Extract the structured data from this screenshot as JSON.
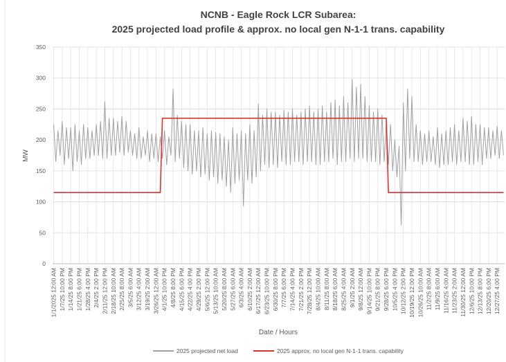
{
  "chart_data": {
    "type": "line",
    "title": [
      "NCNB - Eagle Rock LCR Subarea:",
      "2025 projected load profile & approx. no local gen N-1-1 trans. capability"
    ],
    "xlabel": "Date / Hours",
    "ylabel": "MW",
    "ylim": [
      0,
      350
    ],
    "yticks": [
      0,
      50,
      100,
      150,
      200,
      250,
      300,
      350
    ],
    "grid": true,
    "legend": "bottom",
    "categories": [
      "1/1/2025 12:00 AM",
      null,
      null,
      null,
      "1/7/25 10:00 PM",
      null,
      null,
      null,
      "1/14/25 8:00 PM",
      null,
      null,
      null,
      "1/21/25 6:00 PM",
      null,
      null,
      null,
      "1/28/25 4:00 PM",
      null,
      null,
      null,
      "2/4/25 2:00 PM",
      null,
      null,
      null,
      "2/11/25 12:00 PM",
      null,
      null,
      null,
      "2/18/25 10:00 AM",
      null,
      null,
      null,
      "2/25/25 8:00 AM",
      null,
      null,
      null,
      "3/5/25 6:00 AM",
      null,
      null,
      null,
      "3/12/25 4:00 AM",
      null,
      null,
      null,
      "3/19/25 2:00 AM",
      null,
      null,
      null,
      "3/26/25 12:00 AM",
      null,
      null,
      null,
      "4/1/25 10:00 PM",
      null,
      null,
      null,
      "4/8/25 8:00 PM",
      null,
      null,
      null,
      "4/15/25 6:00 PM",
      null,
      null,
      null,
      "4/22/25 4:00 PM",
      null,
      null,
      null,
      "4/29/25 2:00 PM",
      null,
      null,
      null,
      "5/6/25 12:00 PM",
      null,
      null,
      null,
      "5/13/25 10:00 AM",
      null,
      null,
      null,
      "5/20/25 8:00 AM",
      null,
      null,
      null,
      "5/27/25 6:00 AM",
      null,
      null,
      null,
      "6/3/25 4:00 AM",
      null,
      null,
      null,
      "6/10/25 2:00 AM",
      null,
      null,
      null,
      "6/17/25 12:00 AM",
      null,
      null,
      null,
      "6/23/25 10:00 PM",
      null,
      null,
      null,
      "6/30/25 8:00 PM",
      null,
      null,
      null,
      "7/7/25 6:00 PM",
      null,
      null,
      null,
      "7/14/25 4:00 PM",
      null,
      null,
      null,
      "7/21/25 2:00 PM",
      null,
      null,
      null,
      "7/28/25 12:00 PM",
      null,
      null,
      null,
      "8/4/25 10:00 AM",
      null,
      null,
      null,
      "8/11/25 8:00 AM",
      null,
      null,
      null,
      "8/18/25 6:00 AM",
      null,
      null,
      null,
      "8/25/25 4:00 AM",
      null,
      null,
      null,
      "9/1/25 2:00 AM",
      null,
      null,
      null,
      "9/8/25 12:00 AM",
      null,
      null,
      null,
      "9/14/25 10:00 PM",
      null,
      null,
      null,
      "9/21/25 8:00 PM",
      null,
      null,
      null,
      "9/28/25 6:00 PM",
      null,
      null,
      null,
      "10/5/25 4:00 PM",
      null,
      null,
      null,
      "10/12/25 2:00 PM",
      null,
      null,
      null,
      "10/19/25 12:00 PM",
      null,
      null,
      null,
      "10/26/25 10:00 AM",
      null,
      null,
      null,
      "11/2/25 8:00 AM",
      null,
      null,
      null,
      "11/9/25 6:00 AM",
      null,
      null,
      null,
      "11/16/25 4:00 AM",
      null,
      null,
      null,
      "11/23/25 2:00 AM",
      null,
      null,
      null,
      "11/30/25 12:00 AM",
      null,
      null,
      null,
      "12/6/25 10:00 PM",
      null,
      null,
      null,
      "12/13/25 8:00 PM",
      null,
      null,
      null,
      "12/20/25 6:00 PM",
      null,
      null,
      null,
      "12/27/25 4:00 PM",
      null,
      null,
      null
    ],
    "series": [
      {
        "name": "2025 projected net load",
        "color": "#a0a0a0",
        "values": [
          225,
          165,
          215,
          175,
          230,
          160,
          220,
          170,
          220,
          150,
          225,
          165,
          215,
          160,
          225,
          170,
          220,
          170,
          215,
          175,
          225,
          175,
          230,
          170,
          262,
          170,
          235,
          175,
          235,
          175,
          230,
          180,
          238,
          175,
          230,
          180,
          215,
          175,
          210,
          170,
          220,
          170,
          205,
          175,
          215,
          165,
          210,
          170,
          210,
          165,
          205,
          170,
          215,
          160,
          205,
          175,
          282,
          165,
          240,
          170,
          230,
          155,
          225,
          150,
          225,
          145,
          215,
          150,
          215,
          140,
          220,
          145,
          210,
          135,
          215,
          140,
          212,
          130,
          210,
          135,
          205,
          125,
          200,
          115,
          220,
          130,
          210,
          135,
          215,
          93,
          210,
          135,
          225,
          130,
          215,
          140,
          258,
          150,
          240,
          160,
          250,
          155,
          245,
          160,
          245,
          155,
          240,
          165,
          248,
          160,
          245,
          160,
          250,
          165,
          240,
          165,
          245,
          160,
          250,
          165,
          255,
          165,
          245,
          160,
          250,
          160,
          255,
          165,
          245,
          165,
          260,
          170,
          265,
          160,
          255,
          165,
          270,
          165,
          260,
          170,
          298,
          165,
          285,
          170,
          290,
          170,
          270,
          165,
          255,
          165,
          245,
          165,
          250,
          160,
          240,
          165,
          230,
          160,
          225,
          150,
          200,
          140,
          190,
          62,
          260,
          150,
          282,
          170,
          270,
          165,
          225,
          165,
          215,
          160,
          210,
          165,
          215,
          165,
          205,
          160,
          220,
          155,
          210,
          160,
          215,
          160,
          220,
          165,
          225,
          160,
          215,
          165,
          235,
          165,
          230,
          160,
          238,
          160,
          225,
          165,
          225,
          160,
          220,
          170,
          220,
          170,
          215,
          175,
          222,
          170,
          215,
          175
        ]
      },
      {
        "name": "2025 approx. no local gen N-1-1 trans. capability",
        "color": "#e0302a",
        "values": [
          115,
          115,
          115,
          115,
          115,
          115,
          115,
          115,
          115,
          115,
          115,
          115,
          115,
          115,
          115,
          115,
          115,
          115,
          115,
          115,
          115,
          115,
          115,
          115,
          115,
          115,
          115,
          115,
          115,
          115,
          115,
          115,
          115,
          115,
          115,
          115,
          115,
          115,
          115,
          115,
          115,
          115,
          115,
          115,
          115,
          115,
          115,
          115,
          115,
          115,
          115,
          235,
          235,
          235,
          235,
          235,
          235,
          235,
          235,
          235,
          235,
          235,
          235,
          235,
          235,
          235,
          235,
          235,
          235,
          235,
          235,
          235,
          235,
          235,
          235,
          235,
          235,
          235,
          235,
          235,
          235,
          235,
          235,
          235,
          235,
          235,
          235,
          235,
          235,
          235,
          235,
          235,
          235,
          235,
          235,
          235,
          235,
          235,
          235,
          235,
          235,
          235,
          235,
          235,
          235,
          235,
          235,
          235,
          235,
          235,
          235,
          235,
          235,
          235,
          235,
          235,
          235,
          235,
          235,
          235,
          235,
          235,
          235,
          235,
          235,
          235,
          235,
          235,
          235,
          235,
          235,
          235,
          235,
          235,
          235,
          235,
          235,
          235,
          235,
          235,
          235,
          235,
          235,
          235,
          235,
          235,
          235,
          235,
          235,
          235,
          235,
          235,
          235,
          235,
          235,
          235,
          235,
          115,
          115,
          115,
          115,
          115,
          115,
          115,
          115,
          115,
          115,
          115,
          115,
          115,
          115,
          115,
          115,
          115,
          115,
          115,
          115,
          115,
          115,
          115,
          115,
          115,
          115,
          115,
          115,
          115,
          115,
          115,
          115,
          115,
          115,
          115,
          115,
          115,
          115,
          115,
          115,
          115,
          115,
          115,
          115,
          115,
          115,
          115,
          115,
          115,
          115,
          115,
          115,
          115,
          115,
          115
        ]
      }
    ]
  }
}
